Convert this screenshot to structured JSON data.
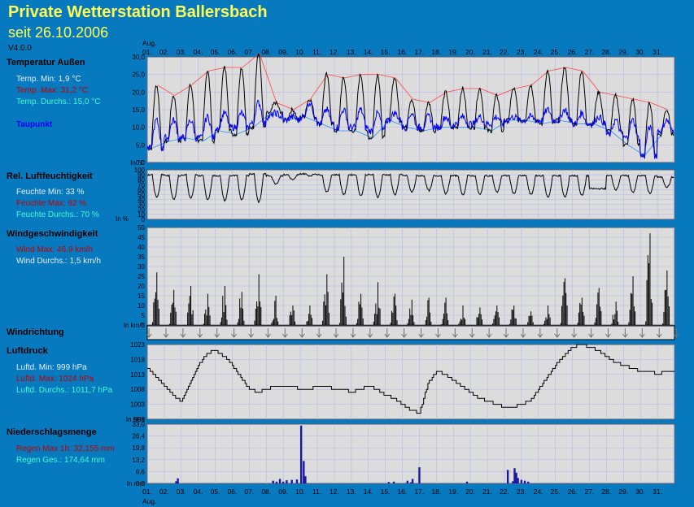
{
  "header": {
    "title": "Private Wetterstation Ballersbach",
    "subtitle": "seit 26.10.2006",
    "version": "V4.0.0"
  },
  "x_axis": {
    "month_label": "Aug.",
    "days": [
      "01.",
      "02.",
      "03.",
      "04.",
      "05.",
      "06.",
      "07.",
      "08.",
      "09.",
      "10.",
      "11.",
      "12.",
      "13.",
      "14.",
      "15.",
      "16.",
      "17.",
      "18.",
      "19.",
      "20.",
      "21.",
      "22.",
      "23.",
      "24.",
      "25.",
      "26.",
      "27.",
      "28.",
      "29.",
      "30.",
      "31."
    ]
  },
  "sections": {
    "temperature": {
      "label": "Temperatur Außen",
      "min": "Temp. Min: 1,9 °C",
      "max": "Temp. Max: 31,2 °C",
      "avg": "Temp. Durchs.: 15,0 °C",
      "dew": "Taupunkt",
      "unit": "In °C"
    },
    "humidity": {
      "label": "Rel. Luftfeuchtigkeit",
      "min": "Feuchte Min: 33 %",
      "max": "Feuchte Max: 92 %",
      "avg": "Feuchte Durchs.: 70 %",
      "unit": "In %"
    },
    "wind": {
      "label": "Windgeschwindigkeit",
      "max": "Wind Max: 46,9 km/h",
      "avg": "Wind Durchs.: 1,5 km/h",
      "unit": "In km/h"
    },
    "wind_direction": {
      "label": "Windrichtung"
    },
    "pressure": {
      "label": "Luftdruck",
      "min": "Luftd. Min: 999 hPa",
      "max": "Luftd. Max: 1024 hPa",
      "avg": "Luftd. Durchs.: 1011,7 hPa",
      "unit": "In hPa"
    },
    "rain": {
      "label": "Niederschlagsmenge",
      "max": "Regen Max 1h: 32,155 mm",
      "total": "Regen Ges.: 174,64 mm",
      "unit": "In mm"
    }
  },
  "colors": {
    "background": "#0779bf",
    "plot_bg": "#dcdcdc",
    "temp_line": "#000000",
    "dew_line": "#0000ff",
    "max_envelope": "#ff4040",
    "min_envelope": "#2090ff",
    "pressure_line": "#000000",
    "rain_bars": "#1a1aa0",
    "title": "#ffff55"
  },
  "chart_data": [
    {
      "type": "line",
      "name": "temperature",
      "ylim": [
        0,
        30
      ],
      "ticks": [
        "30,0",
        "25,0",
        "20,0",
        "15,0",
        "10,0",
        "5,0",
        "0,0"
      ],
      "tick_values": [
        30,
        25,
        20,
        15,
        10,
        5,
        0
      ],
      "daily_max": [
        22,
        19,
        22,
        26,
        27,
        27,
        31,
        17,
        15,
        18,
        25,
        24,
        25,
        25,
        24,
        18,
        17,
        20,
        21,
        21,
        19,
        21,
        22,
        26,
        27,
        26,
        20,
        19,
        18,
        17,
        15
      ],
      "daily_min": [
        4,
        6,
        7,
        6,
        9,
        8,
        10,
        14,
        12,
        13,
        11,
        9,
        9,
        7,
        12,
        10,
        9,
        10,
        10,
        10,
        9,
        12,
        12,
        11,
        12,
        11,
        11,
        9,
        5,
        2,
        8
      ],
      "dew_max": [
        12,
        12,
        12,
        13,
        14,
        14,
        17,
        14,
        13,
        17,
        15,
        15,
        15,
        14,
        14,
        14,
        13,
        13,
        13,
        13,
        13,
        13,
        13,
        15,
        15,
        14,
        13,
        12,
        12,
        10,
        12
      ],
      "dew_min": [
        4,
        7,
        7,
        7,
        10,
        10,
        11,
        13,
        12,
        13,
        11,
        10,
        10,
        9,
        12,
        10,
        10,
        10,
        11,
        11,
        11,
        12,
        12,
        12,
        12,
        11,
        11,
        8,
        7,
        2,
        9
      ]
    },
    {
      "type": "line",
      "name": "humidity",
      "ylim": [
        0,
        100
      ],
      "ticks": [
        "100",
        "90",
        "80",
        "70",
        "60",
        "50",
        "40",
        "30",
        "20",
        "10",
        "0"
      ],
      "tick_values": [
        100,
        90,
        80,
        70,
        60,
        50,
        40,
        30,
        20,
        10,
        0
      ],
      "daily_min": [
        45,
        40,
        42,
        40,
        38,
        40,
        35,
        72,
        80,
        88,
        55,
        50,
        48,
        45,
        50,
        55,
        58,
        52,
        50,
        50,
        55,
        52,
        50,
        45,
        45,
        48,
        62,
        60,
        55,
        52,
        65
      ],
      "daily_max": [
        90,
        88,
        90,
        88,
        88,
        88,
        92,
        88,
        90,
        92,
        90,
        90,
        90,
        90,
        90,
        88,
        88,
        88,
        88,
        88,
        88,
        88,
        88,
        88,
        88,
        88,
        62,
        88,
        88,
        88,
        85
      ]
    },
    {
      "type": "bar",
      "name": "wind",
      "ylim": [
        0,
        50
      ],
      "ticks": [
        "50",
        "45",
        "40",
        "35",
        "30",
        "25",
        "20",
        "15",
        "10",
        "5",
        "0"
      ],
      "tick_values": [
        50,
        45,
        40,
        35,
        30,
        25,
        20,
        15,
        10,
        5,
        0
      ],
      "daily_peak": [
        27,
        18,
        20,
        16,
        20,
        17,
        26,
        15,
        10,
        10,
        26,
        35,
        16,
        22,
        16,
        13,
        14,
        14,
        10,
        9,
        10,
        10,
        7,
        10,
        24,
        14,
        19,
        12,
        25,
        47,
        28
      ]
    },
    {
      "type": "line",
      "name": "pressure",
      "ylim": [
        998,
        1023
      ],
      "ticks": [
        "1023",
        "1018",
        "1013",
        "1008",
        "1003",
        "998"
      ],
      "tick_values": [
        1023,
        1018,
        1013,
        1008,
        1003,
        998
      ],
      "x": [
        0,
        0.5,
        1,
        1.5,
        2,
        2.5,
        3,
        3.5,
        4,
        4.5,
        5,
        5.5,
        6,
        6.5,
        7,
        7.5,
        8,
        8.5,
        9,
        9.5,
        10,
        10.5,
        11,
        11.5,
        12,
        12.5,
        13,
        13.5,
        14,
        14.5,
        15,
        15.5,
        16,
        16.5,
        17,
        17.5,
        18,
        18.5,
        19,
        19.5,
        20,
        20.5,
        21,
        21.5,
        22,
        22.5,
        23,
        23.5,
        24,
        24.5,
        25,
        25.5,
        26,
        26.5,
        27,
        27.5,
        28,
        28.5,
        29,
        29.5,
        30,
        30.5,
        31
      ],
      "values": [
        1015,
        1012,
        1009,
        1006,
        1004,
        1010,
        1016,
        1020,
        1021,
        1019,
        1016,
        1012,
        1008,
        1007,
        1008,
        1009,
        1009,
        1009,
        1008,
        1008,
        1009,
        1009,
        1008,
        1008,
        1007,
        1008,
        1009,
        1008,
        1006,
        1005,
        1003,
        1001,
        1000,
        1010,
        1014,
        1013,
        1011,
        1009,
        1007,
        1005,
        1004,
        1003,
        1002,
        1002,
        1003,
        1004,
        1008,
        1012,
        1016,
        1019,
        1022,
        1023,
        1022,
        1021,
        1019,
        1017,
        1016,
        1015,
        1014,
        1014,
        1013,
        1014,
        1014
      ]
    },
    {
      "type": "bar",
      "name": "rain",
      "ylim": [
        0,
        33
      ],
      "ticks": [
        "33,0",
        "26,4",
        "19,8",
        "13,2",
        "6,6",
        "0,0"
      ],
      "tick_values": [
        33,
        26.4,
        19.8,
        13.2,
        6.6,
        0
      ],
      "x": [
        1.7,
        1.8,
        7.4,
        7.6,
        7.8,
        8.0,
        8.2,
        8.5,
        8.8,
        9.05,
        9.2,
        9.3,
        14.2,
        14.5,
        15.3,
        15.5,
        15.6,
        16.0,
        18.8,
        21.2,
        21.5,
        21.6,
        21.7,
        21.8,
        22.0,
        22.2,
        22.4
      ],
      "values": [
        1.2,
        2.8,
        1.5,
        1.0,
        2.5,
        1.0,
        1.8,
        2.0,
        2.2,
        32.2,
        12.5,
        4.0,
        0.8,
        1.0,
        1.5,
        0.6,
        2.5,
        9.0,
        1.0,
        7.5,
        1.2,
        8.5,
        6.0,
        3.0,
        2.0,
        1.5,
        1.0
      ]
    }
  ]
}
